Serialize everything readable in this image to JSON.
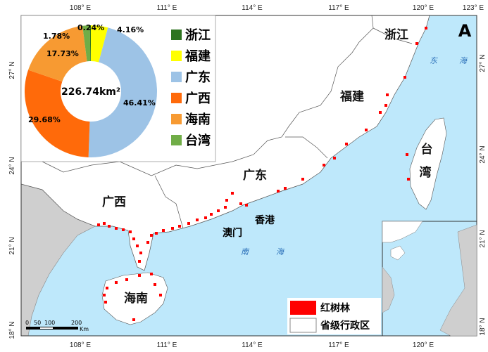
{
  "panel_letter": "A",
  "colors": {
    "sea": "#bee8fb",
    "land": "#ffffff",
    "foreign": "#cfcfcf",
    "mangrove": "#ff0000"
  },
  "axes": {
    "lon_ticks": [
      "108° E",
      "111° E",
      "114° E",
      "117° E",
      "120° E",
      "123° E"
    ],
    "lat_ticks": [
      "27° N",
      "24° N",
      "21° N",
      "18° N"
    ]
  },
  "labels": {
    "zhejiang": "浙江",
    "fujian": "福建",
    "guangdong": "广东",
    "guangxi": "广西",
    "hainan": "海南",
    "taiwan_1": "台",
    "taiwan_2": "湾",
    "hongkong": "香港",
    "macau": "澳门",
    "east_sea_1": "东",
    "east_sea_2": "海",
    "south_sea_1": "南",
    "south_sea_2": "海"
  },
  "legend": {
    "mangrove": "红树林",
    "province": "省级行政区"
  },
  "scalebar": {
    "ticks": [
      "0",
      "50",
      "100",
      "200"
    ],
    "unit": "Km"
  },
  "chart_data": {
    "type": "pie",
    "donut": true,
    "center_label": "226.74km²",
    "legend_position": "right",
    "slices": [
      {
        "name": "福建",
        "value": 4.16,
        "label": "4.16%",
        "color": "#ffff00"
      },
      {
        "name": "广东",
        "value": 46.41,
        "label": "46.41%",
        "color": "#9dc3e6"
      },
      {
        "name": "广西",
        "value": 29.68,
        "label": "29.68%",
        "color": "#ff6a0a"
      },
      {
        "name": "海南",
        "value": 17.73,
        "label": "17.73%",
        "color": "#f79a32"
      },
      {
        "name": "台湾",
        "value": 1.78,
        "label": "1.78%",
        "color": "#70ad47"
      },
      {
        "name": "浙江",
        "value": 0.24,
        "label": "0.24%",
        "color": "#2e7420"
      }
    ],
    "legend_order": [
      "浙江",
      "福建",
      "广东",
      "广西",
      "海南",
      "台湾"
    ]
  }
}
